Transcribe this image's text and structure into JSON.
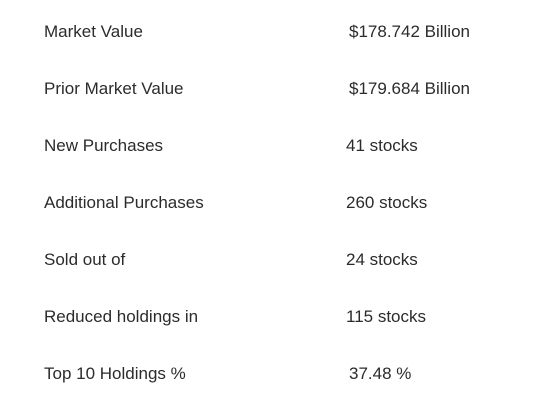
{
  "stats": [
    {
      "label": "Market Value",
      "value": "$178.742 Billion"
    },
    {
      "label": "Prior Market Value",
      "value": "$179.684 Billion"
    },
    {
      "label": "New Purchases",
      "value": "41 stocks"
    },
    {
      "label": "Additional Purchases",
      "value": "260 stocks"
    },
    {
      "label": "Sold out of",
      "value": "24 stocks"
    },
    {
      "label": "Reduced holdings in",
      "value": "115 stocks"
    },
    {
      "label": "Top 10 Holdings %",
      "value": "37.48 %"
    }
  ]
}
